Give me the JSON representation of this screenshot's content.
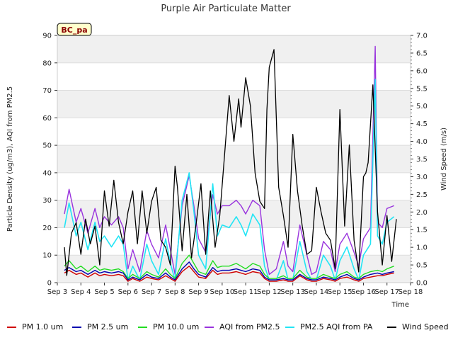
{
  "chart_data": {
    "type": "line",
    "title": "Purple Air Particulate Matter",
    "xlabel": "Time",
    "ylabel": "Particle Density (ug/m3), AQI from PM2.5",
    "y2label": "Wind Speed (m/s)",
    "badge": "BC_pa",
    "xlim": [
      3,
      18
    ],
    "ylim": [
      0,
      90
    ],
    "y2lim": [
      0,
      7.0
    ],
    "x_ticks": [
      "Sep 3",
      "Sep 4",
      "Sep 5",
      "Sep 6",
      "Sep 7",
      "Sep 8",
      "Sep 9",
      "Sep 10",
      "Sep 11",
      "Sep 12",
      "Sep 13",
      "Sep 14",
      "Sep 15",
      "Sep 16",
      "Sep 17",
      "Sep 18"
    ],
    "y_ticks": [
      "0",
      "10",
      "20",
      "30",
      "40",
      "50",
      "60",
      "70",
      "80",
      "90"
    ],
    "y2_ticks": [
      "0.0",
      "0.5",
      "1.0",
      "1.5",
      "2.0",
      "2.5",
      "3.0",
      "3.5",
      "4.0",
      "4.5",
      "5.0",
      "5.5",
      "6.0",
      "6.5",
      "7.0"
    ],
    "grid": "horizontal bands",
    "legend_placement": "bottom",
    "colors": {
      "pm1": "#d00000",
      "pm25": "#0000b0",
      "pm10": "#22dd22",
      "aqi_pm25": "#9933dd",
      "pa_aqi": "#22e5f5",
      "wind": "#000000"
    },
    "series": [
      {
        "name": "PM 1.0 um",
        "axis": "left",
        "x": [
          3.3,
          3.5,
          3.8,
          4.0,
          4.3,
          4.6,
          4.8,
          5.0,
          5.3,
          5.6,
          5.8,
          6.0,
          6.2,
          6.5,
          6.8,
          7.0,
          7.3,
          7.6,
          7.8,
          8.0,
          8.3,
          8.6,
          8.8,
          9.0,
          9.3,
          9.6,
          9.8,
          10.0,
          10.3,
          10.6,
          10.8,
          11.0,
          11.3,
          11.6,
          11.8,
          12.0,
          12.3,
          12.6,
          12.8,
          13.0,
          13.3,
          13.6,
          13.8,
          14.0,
          14.3,
          14.6,
          14.8,
          15.0,
          15.3,
          15.6,
          15.8,
          16.0,
          16.3,
          16.6,
          16.8,
          17.0,
          17.3
        ],
        "values": [
          3.5,
          4.5,
          3,
          3.5,
          2,
          3.5,
          2.5,
          3,
          2.5,
          3,
          2.5,
          0.5,
          1.5,
          0.5,
          2,
          1.5,
          1,
          2.5,
          1.5,
          0.5,
          4,
          6,
          4,
          2,
          1.5,
          4.5,
          3,
          3.5,
          3.5,
          4,
          3.5,
          3,
          4,
          3.5,
          1.5,
          0.5,
          0.5,
          1,
          0.5,
          0.5,
          2.5,
          1,
          0.5,
          0.5,
          1.5,
          1,
          0.5,
          1.5,
          2,
          1,
          0.5,
          1.5,
          2,
          2.5,
          2.5,
          3,
          3.5
        ]
      },
      {
        "name": "PM 2.5 um",
        "axis": "left",
        "x": [
          3.3,
          3.5,
          3.8,
          4.0,
          4.3,
          4.6,
          4.8,
          5.0,
          5.3,
          5.6,
          5.8,
          6.0,
          6.2,
          6.5,
          6.8,
          7.0,
          7.3,
          7.6,
          7.8,
          8.0,
          8.3,
          8.6,
          8.8,
          9.0,
          9.3,
          9.6,
          9.8,
          10.0,
          10.3,
          10.6,
          10.8,
          11.0,
          11.3,
          11.6,
          11.8,
          12.0,
          12.3,
          12.6,
          12.8,
          13.0,
          13.3,
          13.6,
          13.8,
          14.0,
          14.3,
          14.6,
          14.8,
          15.0,
          15.3,
          15.6,
          15.8,
          16.0,
          16.3,
          16.6,
          16.8,
          17.0,
          17.3
        ],
        "values": [
          4.5,
          5.5,
          4,
          4.5,
          3,
          4.5,
          3.5,
          4,
          3.5,
          4,
          3.5,
          1,
          2,
          1,
          3,
          2,
          1.5,
          3.5,
          2,
          1,
          5,
          7.5,
          5,
          3,
          2,
          5.5,
          4,
          4.5,
          4.5,
          5,
          4.5,
          4,
          5,
          4.5,
          2,
          1,
          1,
          1.5,
          1,
          1,
          3,
          1.5,
          1,
          1,
          2,
          1.5,
          1,
          2,
          3,
          1.5,
          1,
          2,
          3,
          3.5,
          3,
          3.5,
          4
        ]
      },
      {
        "name": "PM 10.0 um",
        "axis": "left",
        "x": [
          3.3,
          3.5,
          3.8,
          4.0,
          4.3,
          4.6,
          4.8,
          5.0,
          5.3,
          5.6,
          5.8,
          6.0,
          6.2,
          6.5,
          6.8,
          7.0,
          7.3,
          7.6,
          7.8,
          8.0,
          8.3,
          8.6,
          8.8,
          9.0,
          9.3,
          9.6,
          9.8,
          10.0,
          10.3,
          10.6,
          10.8,
          11.0,
          11.3,
          11.6,
          11.8,
          12.0,
          12.3,
          12.6,
          12.8,
          13.0,
          13.3,
          13.6,
          13.8,
          14.0,
          14.3,
          14.6,
          14.8,
          15.0,
          15.3,
          15.6,
          15.8,
          16.0,
          16.3,
          16.6,
          16.8,
          17.0,
          17.3
        ],
        "values": [
          6,
          8,
          5,
          6,
          4,
          6,
          4.5,
          5,
          4.5,
          5,
          4,
          1.5,
          3,
          1.5,
          4,
          3,
          2,
          5,
          3,
          1.5,
          7,
          10,
          7,
          4,
          3,
          8,
          5.5,
          6,
          6,
          7,
          6,
          5,
          7,
          6,
          3,
          1.5,
          1.5,
          2.5,
          1.5,
          1.5,
          4.5,
          2,
          1.5,
          1.5,
          3,
          2,
          1.5,
          3,
          4,
          2,
          1.5,
          3,
          4,
          4.5,
          4,
          5,
          6
        ]
      },
      {
        "name": "AQI from PM2.5",
        "axis": "left",
        "x": [
          3.3,
          3.5,
          3.8,
          4.0,
          4.3,
          4.6,
          4.8,
          5.0,
          5.3,
          5.6,
          5.8,
          6.0,
          6.2,
          6.5,
          6.8,
          7.0,
          7.3,
          7.6,
          7.8,
          8.0,
          8.3,
          8.6,
          8.8,
          9.0,
          9.3,
          9.6,
          9.8,
          10.0,
          10.3,
          10.6,
          10.8,
          11.0,
          11.3,
          11.6,
          11.8,
          12.0,
          12.3,
          12.6,
          12.8,
          13.0,
          13.3,
          13.6,
          13.8,
          14.0,
          14.3,
          14.6,
          14.8,
          15.0,
          15.3,
          15.6,
          15.8,
          16.0,
          16.3,
          16.5,
          16.6,
          16.8,
          17.0,
          17.3
        ],
        "values": [
          25,
          34,
          22,
          27,
          18,
          27,
          20,
          24,
          21,
          24,
          20,
          5,
          12,
          4,
          19,
          14,
          9,
          21,
          12,
          3,
          28,
          39,
          28,
          16,
          11,
          32,
          25,
          28,
          28,
          30,
          28,
          25,
          30,
          28,
          12,
          3,
          5,
          15,
          6,
          4,
          21,
          10,
          3,
          4,
          15,
          12,
          4,
          14,
          18,
          11,
          6,
          16,
          20,
          86,
          22,
          20,
          27,
          28
        ]
      },
      {
        "name": "PM2.5 AQI from PA",
        "axis": "left",
        "x": [
          3.3,
          3.5,
          3.8,
          4.0,
          4.3,
          4.6,
          4.8,
          5.0,
          5.3,
          5.6,
          5.8,
          6.0,
          6.2,
          6.5,
          6.8,
          7.0,
          7.3,
          7.6,
          7.8,
          8.0,
          8.3,
          8.6,
          8.8,
          9.0,
          9.3,
          9.6,
          9.8,
          10.0,
          10.3,
          10.6,
          10.8,
          11.0,
          11.3,
          11.6,
          11.8,
          12.0,
          12.3,
          12.6,
          12.8,
          13.0,
          13.3,
          13.6,
          13.8,
          14.0,
          14.3,
          14.6,
          14.8,
          15.0,
          15.3,
          15.6,
          15.8,
          16.0,
          16.3,
          16.5,
          16.6,
          16.8,
          17.0,
          17.3
        ],
        "values": [
          20,
          29,
          17,
          22,
          12,
          22,
          15,
          17,
          13,
          17,
          14,
          1,
          6,
          1,
          14,
          8,
          3,
          16,
          7,
          1,
          30,
          40,
          26,
          10,
          5,
          36,
          17,
          21,
          20,
          24,
          21,
          17,
          25,
          21,
          6,
          1,
          1,
          8,
          1,
          1,
          15,
          4,
          1,
          1,
          10,
          6,
          1,
          8,
          13,
          5,
          1,
          10,
          14,
          74,
          17,
          14,
          22,
          24
        ]
      },
      {
        "name": "Wind Speed",
        "axis": "right",
        "x": [
          3.3,
          3.4,
          3.6,
          3.8,
          4.0,
          4.2,
          4.4,
          4.6,
          4.8,
          5.0,
          5.2,
          5.4,
          5.6,
          5.8,
          6.0,
          6.2,
          6.4,
          6.6,
          6.8,
          7.0,
          7.2,
          7.4,
          7.6,
          7.8,
          8.0,
          8.1,
          8.3,
          8.5,
          8.7,
          8.9,
          9.1,
          9.3,
          9.5,
          9.7,
          9.9,
          10.1,
          10.3,
          10.5,
          10.7,
          10.8,
          11.0,
          11.2,
          11.4,
          11.6,
          11.8,
          11.9,
          12.0,
          12.2,
          12.4,
          12.6,
          12.8,
          13.0,
          13.2,
          13.4,
          13.6,
          13.8,
          14.0,
          14.2,
          14.4,
          14.6,
          14.8,
          15.0,
          15.2,
          15.4,
          15.6,
          15.8,
          16.0,
          16.1,
          16.2,
          16.4,
          16.6,
          16.8,
          17.0,
          17.2,
          17.4
        ],
        "values": [
          1.0,
          0.2,
          1.4,
          1.7,
          0.8,
          1.8,
          1.1,
          1.6,
          0.5,
          2.6,
          1.6,
          2.9,
          1.7,
          1.1,
          2.0,
          2.6,
          1.1,
          2.6,
          1.4,
          2.3,
          2.7,
          1.2,
          1.0,
          0.5,
          3.3,
          2.7,
          0.9,
          2.5,
          0.7,
          1.7,
          2.8,
          0.8,
          2.6,
          1.0,
          1.9,
          3.6,
          5.3,
          4.0,
          5.2,
          4.4,
          5.8,
          5.0,
          3.1,
          2.3,
          2.1,
          4.9,
          6.1,
          6.6,
          2.7,
          1.9,
          1.0,
          4.2,
          2.6,
          1.6,
          0.8,
          0.9,
          2.7,
          2.0,
          1.4,
          1.2,
          0.4,
          4.9,
          1.6,
          3.9,
          1.2,
          0.3,
          3.0,
          3.1,
          3.4,
          5.6,
          2.0,
          0.5,
          1.9,
          0.6,
          1.8
        ]
      }
    ]
  }
}
